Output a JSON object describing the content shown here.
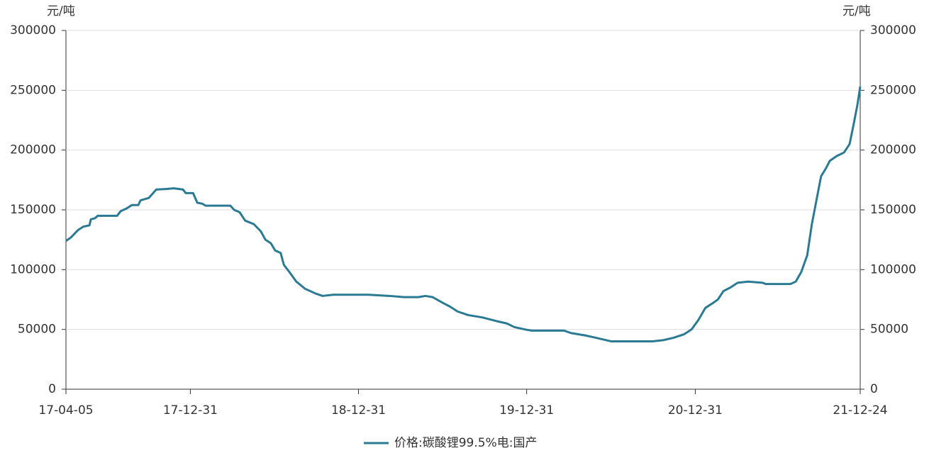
{
  "chart_data": {
    "type": "line",
    "y_label": "元/吨",
    "x": [
      "17-04-05",
      "17-04-16",
      "17-05-01",
      "17-05-13",
      "17-05-26",
      "17-05-29",
      "17-06-07",
      "17-06-13",
      "17-07-25",
      "17-08-02",
      "17-08-14",
      "17-08-26",
      "17-09-09",
      "17-09-14",
      "17-10-02",
      "17-10-18",
      "17-11-10",
      "17-11-25",
      "17-12-15",
      "17-12-21",
      "18-01-06",
      "18-01-15",
      "18-01-27",
      "18-02-02",
      "18-03-28",
      "18-04-05",
      "18-04-17",
      "18-04-29",
      "18-05-18",
      "18-06-02",
      "18-06-12",
      "18-06-24",
      "18-07-03",
      "18-07-15",
      "18-07-22",
      "18-08-03",
      "18-08-18",
      "18-09-06",
      "18-09-29",
      "18-10-14",
      "18-11-06",
      "19-01-22",
      "19-03-09",
      "19-04-09",
      "19-05-10",
      "19-05-25",
      "19-06-10",
      "19-07-03",
      "19-07-18",
      "19-08-03",
      "19-08-26",
      "19-09-26",
      "19-10-26",
      "19-11-18",
      "19-12-04",
      "19-12-27",
      "20-01-11",
      "20-03-21",
      "20-04-05",
      "20-05-06",
      "20-05-29",
      "20-07-02",
      "20-09-29",
      "20-10-22",
      "20-11-14",
      "20-12-07",
      "20-12-23",
      "21-01-07",
      "21-01-22",
      "21-02-07",
      "21-02-18",
      "21-03-02",
      "21-03-17",
      "21-04-02",
      "21-04-25",
      "21-05-26",
      "21-06-02",
      "21-07-26",
      "21-08-06",
      "21-08-18",
      "21-08-31",
      "21-09-10",
      "21-09-21",
      "21-09-30",
      "21-10-11",
      "21-10-19",
      "21-11-03",
      "21-11-19",
      "21-12-01",
      "21-12-10",
      "21-12-18",
      "21-12-24"
    ],
    "series": [
      {
        "name": "价格:碳酸锂99.5%电:国产",
        "color": "#2b7a94",
        "values": [
          124000,
          127000,
          133000,
          136000,
          137000,
          142000,
          143000,
          145000,
          145000,
          149000,
          151000,
          154000,
          154000,
          158000,
          160000,
          167000,
          167500,
          168000,
          167000,
          164000,
          164000,
          156000,
          155000,
          153500,
          153500,
          150000,
          148000,
          141000,
          138000,
          132000,
          125000,
          122000,
          116000,
          114000,
          104000,
          98000,
          90000,
          84000,
          80000,
          78000,
          79000,
          79000,
          78000,
          77000,
          77000,
          78000,
          77000,
          72000,
          69000,
          65000,
          62000,
          60000,
          57000,
          55000,
          52000,
          50000,
          49000,
          49000,
          47000,
          45000,
          43000,
          40000,
          40000,
          41000,
          43000,
          46000,
          50000,
          58000,
          68000,
          72000,
          75000,
          82000,
          85000,
          89000,
          90000,
          89000,
          88000,
          88000,
          90000,
          98000,
          112000,
          138000,
          160000,
          178000,
          185000,
          191000,
          195000,
          198000,
          205000,
          222000,
          238000,
          253000
        ]
      }
    ],
    "xlim": [
      "17-04-05",
      "21-12-24"
    ],
    "xticks": [
      "17-04-05",
      "17-12-31",
      "18-12-31",
      "19-12-31",
      "20-12-31",
      "21-12-24"
    ],
    "ylim": [
      0,
      300000
    ],
    "yticks": [
      0,
      50000,
      100000,
      150000,
      200000,
      250000,
      300000
    ],
    "grid": true
  }
}
